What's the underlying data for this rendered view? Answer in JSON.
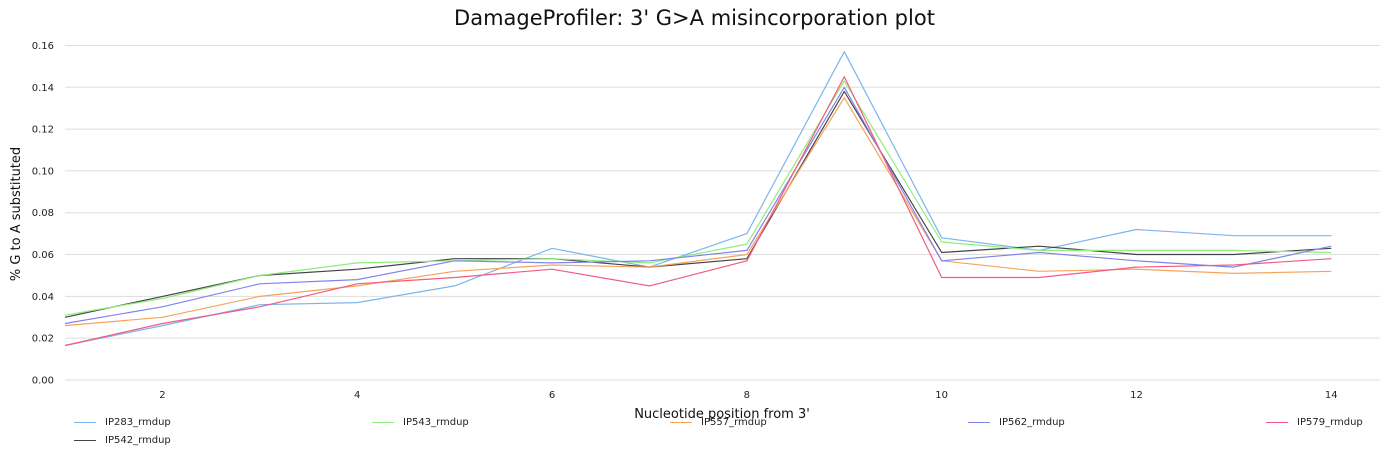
{
  "chart_data": {
    "type": "line",
    "title": "DamageProfiler: 3' G>A misincorporation plot",
    "xlabel": "Nucleotide position from 3'",
    "ylabel": "% G to A substituted",
    "xlim": [
      1,
      14.5
    ],
    "ylim": [
      0,
      0.165
    ],
    "x": [
      1,
      2,
      3,
      4,
      5,
      6,
      7,
      8,
      9,
      10,
      11,
      12,
      13,
      14
    ],
    "x_ticks": [
      2,
      4,
      6,
      8,
      10,
      12,
      14
    ],
    "x_tick_labels": [
      "2",
      "4",
      "6",
      "8",
      "10",
      "12",
      "14"
    ],
    "y_ticks": [
      0.0,
      0.02,
      0.04,
      0.06,
      0.08,
      0.1,
      0.12,
      0.14,
      0.16
    ],
    "y_tick_labels": [
      "0.00",
      "0.02",
      "0.04",
      "0.06",
      "0.08",
      "0.10",
      "0.12",
      "0.14",
      "0.16"
    ],
    "grid": "horizontal",
    "legend_position": "bottom",
    "series": [
      {
        "name": "IP283_rmdup",
        "color": "#7cb5ec",
        "values": [
          0.0165,
          0.026,
          0.036,
          0.037,
          0.045,
          0.063,
          0.054,
          0.07,
          0.157,
          0.068,
          0.062,
          0.072,
          0.069,
          0.069
        ]
      },
      {
        "name": "IP542_rmdup",
        "color": "#434348",
        "values": [
          0.03,
          0.04,
          0.05,
          0.053,
          0.058,
          0.058,
          0.054,
          0.058,
          0.138,
          0.061,
          0.064,
          0.06,
          0.06,
          0.063
        ]
      },
      {
        "name": "IP543_rmdup",
        "color": "#90ed7d",
        "values": [
          0.031,
          0.039,
          0.05,
          0.056,
          0.057,
          0.058,
          0.056,
          0.065,
          0.143,
          0.066,
          0.062,
          0.062,
          0.062,
          0.061
        ]
      },
      {
        "name": "IP557_rmdup",
        "color": "#f7a35c",
        "values": [
          0.026,
          0.03,
          0.04,
          0.045,
          0.052,
          0.055,
          0.054,
          0.06,
          0.135,
          0.057,
          0.052,
          0.053,
          0.051,
          0.052
        ]
      },
      {
        "name": "IP562_rmdup",
        "color": "#8085e9",
        "values": [
          0.027,
          0.035,
          0.046,
          0.048,
          0.057,
          0.056,
          0.057,
          0.062,
          0.14,
          0.057,
          0.061,
          0.057,
          0.054,
          0.064
        ]
      },
      {
        "name": "IP579_rmdup",
        "color": "#f15c80",
        "values": [
          0.0165,
          0.027,
          0.035,
          0.046,
          0.049,
          0.053,
          0.045,
          0.057,
          0.145,
          0.049,
          0.049,
          0.054,
          0.055,
          0.058
        ]
      }
    ]
  }
}
